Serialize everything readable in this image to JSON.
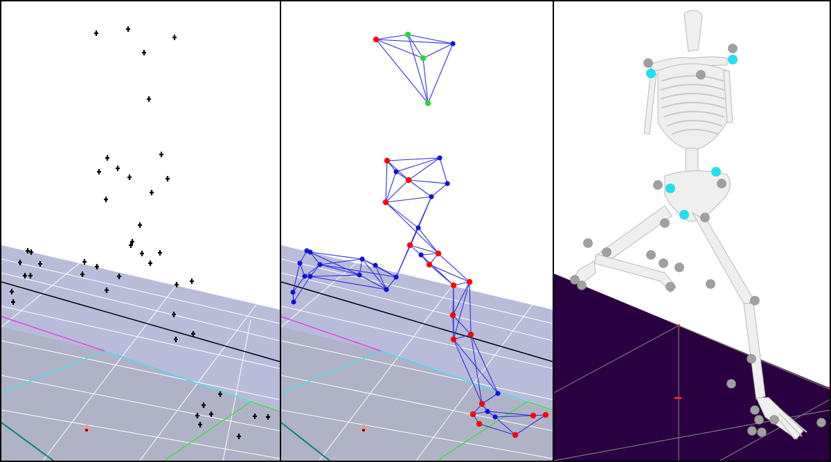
{
  "panels": [
    {
      "id": "markers",
      "view": "raw-marker-cloud"
    },
    {
      "id": "segments",
      "view": "segment-model"
    },
    {
      "id": "skeleton",
      "view": "musculoskeletal-model"
    }
  ],
  "colors": {
    "floor_light": "#b8bcdb",
    "floor_dark": "#a9acbf",
    "grid_line": "#ffffff",
    "axis_black": "#000000",
    "axis_magenta": "#e040e0",
    "axis_cyan": "#40e0f0",
    "axis_green": "#40e040",
    "marker_black": "#000000",
    "marker_red": "#ff0000",
    "marker_blue": "#1010e0",
    "marker_green": "#22dd22",
    "link_blue": "#2a2ae8",
    "skeleton_floor": "#2b0040",
    "bone": "#efefef",
    "marker_gray": "#a0a0a0",
    "marker_cyan": "#20e0f0"
  }
}
